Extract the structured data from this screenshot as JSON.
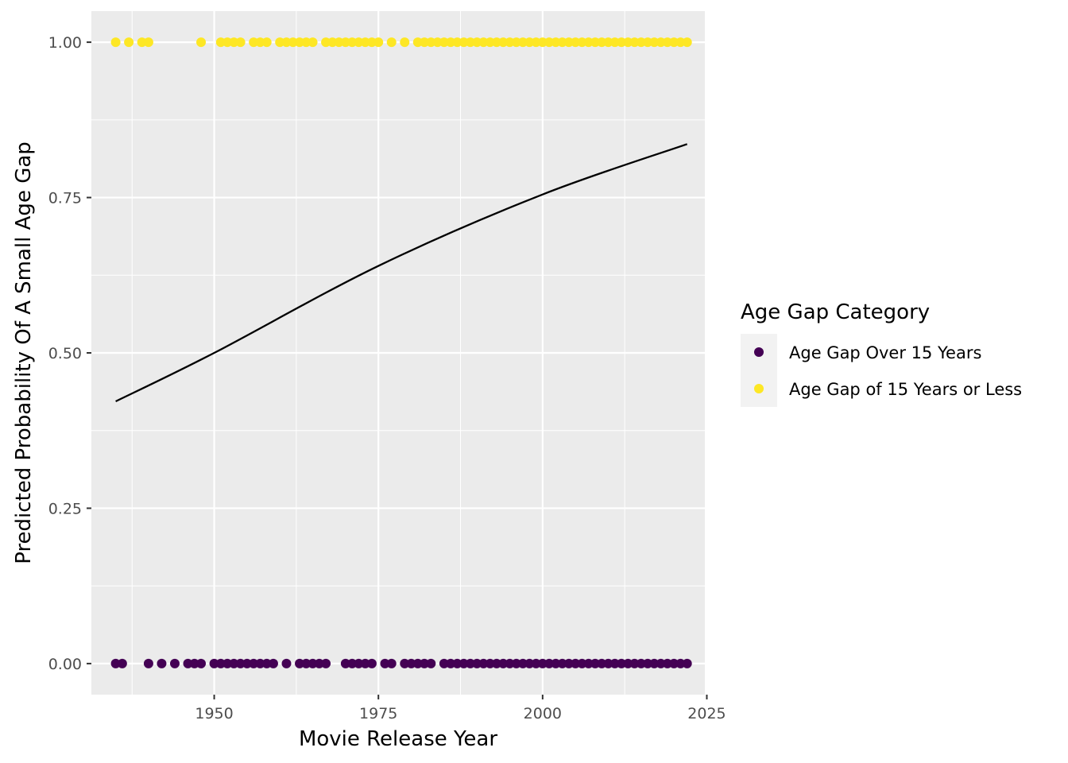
{
  "chart_data": {
    "type": "scatter",
    "title": "",
    "xlabel": "Movie Release Year",
    "ylabel": "Predicted Probability Of A Small Age Gap",
    "xlim": [
      1931.3,
      2024.7
    ],
    "ylim": [
      -0.05,
      1.05
    ],
    "x_ticks": [
      1950,
      1975,
      2000,
      2025
    ],
    "x_tick_labels": [
      "1950",
      "1975",
      "2000",
      "2025"
    ],
    "y_ticks": [
      0,
      0.25,
      0.5,
      0.75,
      1
    ],
    "y_tick_labels": [
      "0.00",
      "0.25",
      "0.50",
      "0.75",
      "1.00"
    ],
    "grid": true,
    "panel_background": "#ebebeb",
    "legend": {
      "title": "Age Gap Category",
      "position": "right",
      "entries": [
        {
          "label": "Age Gap Over 15 Years",
          "color": "#440154"
        },
        {
          "label": "Age Gap of 15 Years or Less",
          "color": "#fde725"
        }
      ]
    },
    "series": [
      {
        "name": "Age Gap Over 15 Years",
        "color": "#440154",
        "y": 0,
        "x": [
          1935,
          1936,
          1940,
          1942,
          1944,
          1946,
          1947,
          1948,
          1950,
          1951,
          1952,
          1953,
          1954,
          1955,
          1956,
          1957,
          1958,
          1959,
          1961,
          1963,
          1964,
          1965,
          1966,
          1967,
          1970,
          1971,
          1972,
          1973,
          1974,
          1976,
          1977,
          1979,
          1980,
          1981,
          1982,
          1983,
          1985,
          1986,
          1987,
          1988,
          1989,
          1990,
          1991,
          1992,
          1993,
          1994,
          1995,
          1996,
          1997,
          1998,
          1999,
          2000,
          2001,
          2002,
          2003,
          2004,
          2005,
          2006,
          2007,
          2008,
          2009,
          2010,
          2011,
          2012,
          2013,
          2014,
          2015,
          2016,
          2017,
          2018,
          2019,
          2020,
          2021,
          2022
        ]
      },
      {
        "name": "Age Gap of 15 Years or Less",
        "color": "#fde725",
        "y": 1,
        "x": [
          1935,
          1937,
          1939,
          1940,
          1948,
          1951,
          1952,
          1953,
          1954,
          1956,
          1957,
          1958,
          1960,
          1961,
          1962,
          1963,
          1964,
          1965,
          1967,
          1968,
          1969,
          1970,
          1971,
          1972,
          1973,
          1974,
          1975,
          1977,
          1979,
          1981,
          1982,
          1983,
          1984,
          1985,
          1986,
          1987,
          1988,
          1989,
          1990,
          1991,
          1992,
          1993,
          1994,
          1995,
          1996,
          1997,
          1998,
          1999,
          2000,
          2001,
          2002,
          2003,
          2004,
          2005,
          2006,
          2007,
          2008,
          2009,
          2010,
          2011,
          2012,
          2013,
          2014,
          2015,
          2016,
          2017,
          2018,
          2019,
          2020,
          2021,
          2022
        ]
      },
      {
        "name": "",
        "type": "line",
        "color": "#000000",
        "x": [
          1935,
          1950,
          1975,
          2000,
          2022
        ],
        "y": [
          0.422,
          0.5,
          0.64,
          0.755,
          0.836
        ]
      }
    ]
  }
}
